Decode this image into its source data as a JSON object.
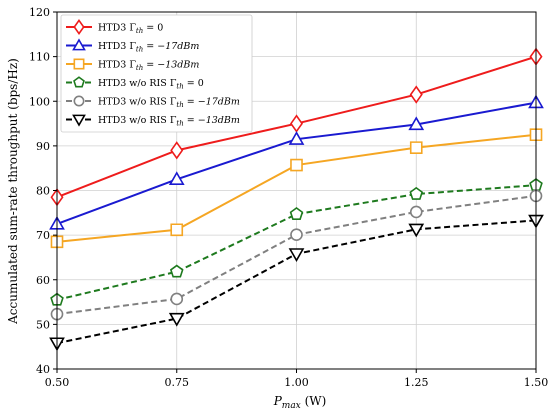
{
  "chart_data": {
    "type": "line",
    "xlabel": "P_max (W)",
    "xlabel_main": "P",
    "xlabel_sub": "max",
    "xlabel_unit": " (W)",
    "ylabel": "Accumulated sum-rate throughput (bps/Hz)",
    "x": [
      0.5,
      0.75,
      1.0,
      1.25,
      1.5
    ],
    "x_tick_labels": [
      "0.50",
      "0.75",
      "1.00",
      "1.25",
      "1.50"
    ],
    "xlim": [
      0.5,
      1.5
    ],
    "ylim": [
      40,
      120
    ],
    "y_ticks": [
      40,
      50,
      60,
      70,
      80,
      90,
      100,
      110,
      120
    ],
    "grid": true,
    "legend_position": "top-left",
    "series": [
      {
        "name": "HTD3 Γth = 0",
        "legend_prefix": "HTD3 ",
        "legend_math": "Γth = 0",
        "values": [
          78.5,
          89.0,
          95.0,
          101.5,
          110.0
        ],
        "color": "#ee1c1c",
        "dash": "solid",
        "marker": "diamond",
        "fill": "none"
      },
      {
        "name": "HTD3 Γth = −17dBm",
        "legend_prefix": "HTD3 ",
        "legend_math": "Γth = −17dBm",
        "values": [
          72.5,
          82.5,
          91.5,
          94.8,
          99.7
        ],
        "color": "#1a1ad0",
        "dash": "solid",
        "marker": "triangle-up",
        "fill": "none"
      },
      {
        "name": "HTD3 Γth = −13dBm",
        "legend_prefix": "HTD3 ",
        "legend_math": "Γth = −13dBm",
        "values": [
          68.5,
          71.2,
          85.7,
          89.6,
          92.5
        ],
        "color": "#f5a623",
        "dash": "solid",
        "marker": "square",
        "fill": "none"
      },
      {
        "name": "HTD3 w/o RIS Γth = 0",
        "legend_prefix": "HTD3 w/o RIS ",
        "legend_math": "Γth = 0",
        "values": [
          55.5,
          61.8,
          74.7,
          79.2,
          81.2
        ],
        "color": "#1e7a1e",
        "dash": "dashed",
        "marker": "pentagon",
        "fill": "none"
      },
      {
        "name": "HTD3 w/o RIS Γth = −17dBm",
        "legend_prefix": "HTD3 w/o RIS ",
        "legend_math": "Γth = −17dBm",
        "values": [
          52.3,
          55.7,
          70.1,
          75.2,
          78.8
        ],
        "color": "#808080",
        "dash": "dashed",
        "marker": "circle",
        "fill": "none"
      },
      {
        "name": "HTD3 w/o RIS Γth = −13dBm",
        "legend_prefix": "HTD3 w/o RIS ",
        "legend_math": "Γth = −13dBm",
        "values": [
          45.8,
          51.3,
          65.8,
          71.3,
          73.3
        ],
        "color": "#000000",
        "dash": "dashed",
        "marker": "triangle-down",
        "fill": "none"
      }
    ]
  }
}
